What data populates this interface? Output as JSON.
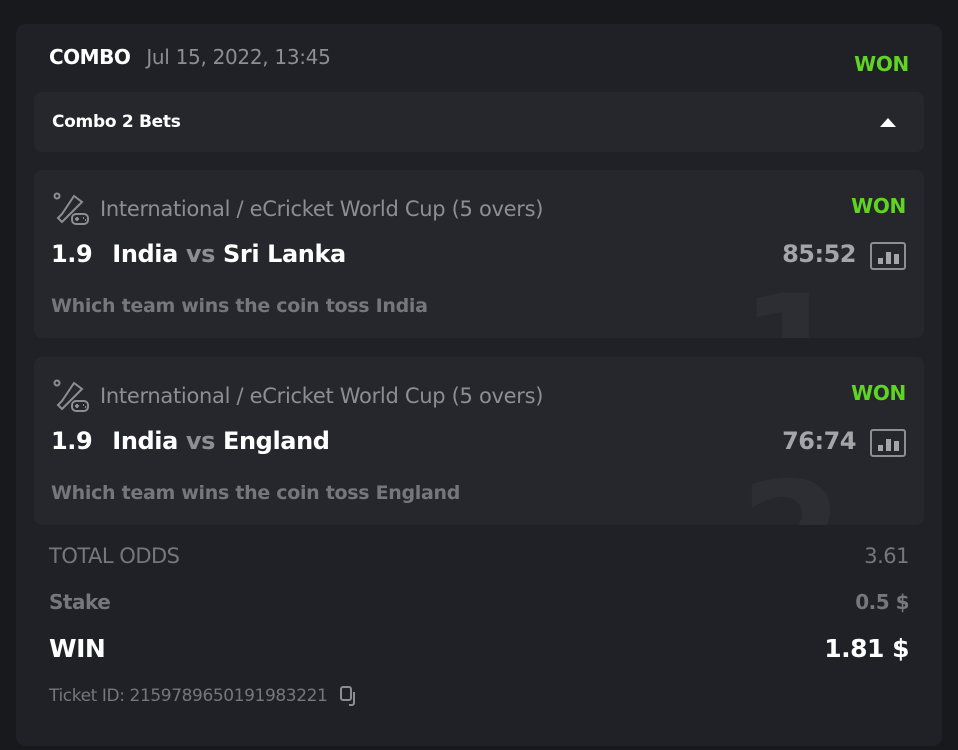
{
  "header": {
    "type": "COMBO",
    "date": "Jul 15, 2022, 13:45",
    "status": "WON"
  },
  "combo_bar": {
    "label": "Combo 2 Bets",
    "toggle_icon": "caret-up-icon"
  },
  "bets": [
    {
      "index": "1",
      "league": "International / eCricket World Cup (5 overs)",
      "status": "WON",
      "odds": "1.9",
      "home": "India",
      "vs": "vs",
      "away": "Sri Lanka",
      "score": "85:52",
      "market": "Which team wins the coin toss India"
    },
    {
      "index": "2",
      "league": "International / eCricket World Cup (5 overs)",
      "status": "WON",
      "odds": "1.9",
      "home": "India",
      "vs": "vs",
      "away": "England",
      "score": "76:74",
      "market": "Which team wins the coin toss England"
    }
  ],
  "summary": {
    "total_odds_label": "TOTAL ODDS",
    "total_odds": "3.61",
    "stake_label": "Stake",
    "stake": "0.5 $",
    "win_label": "WIN",
    "win": "1.81 $"
  },
  "ticket": {
    "label": "Ticket ID: 215978965019198322​1",
    "copy_icon": "copy-icon"
  },
  "colors": {
    "won": "#5fd424",
    "background": "#202126",
    "card": "#26272c"
  }
}
